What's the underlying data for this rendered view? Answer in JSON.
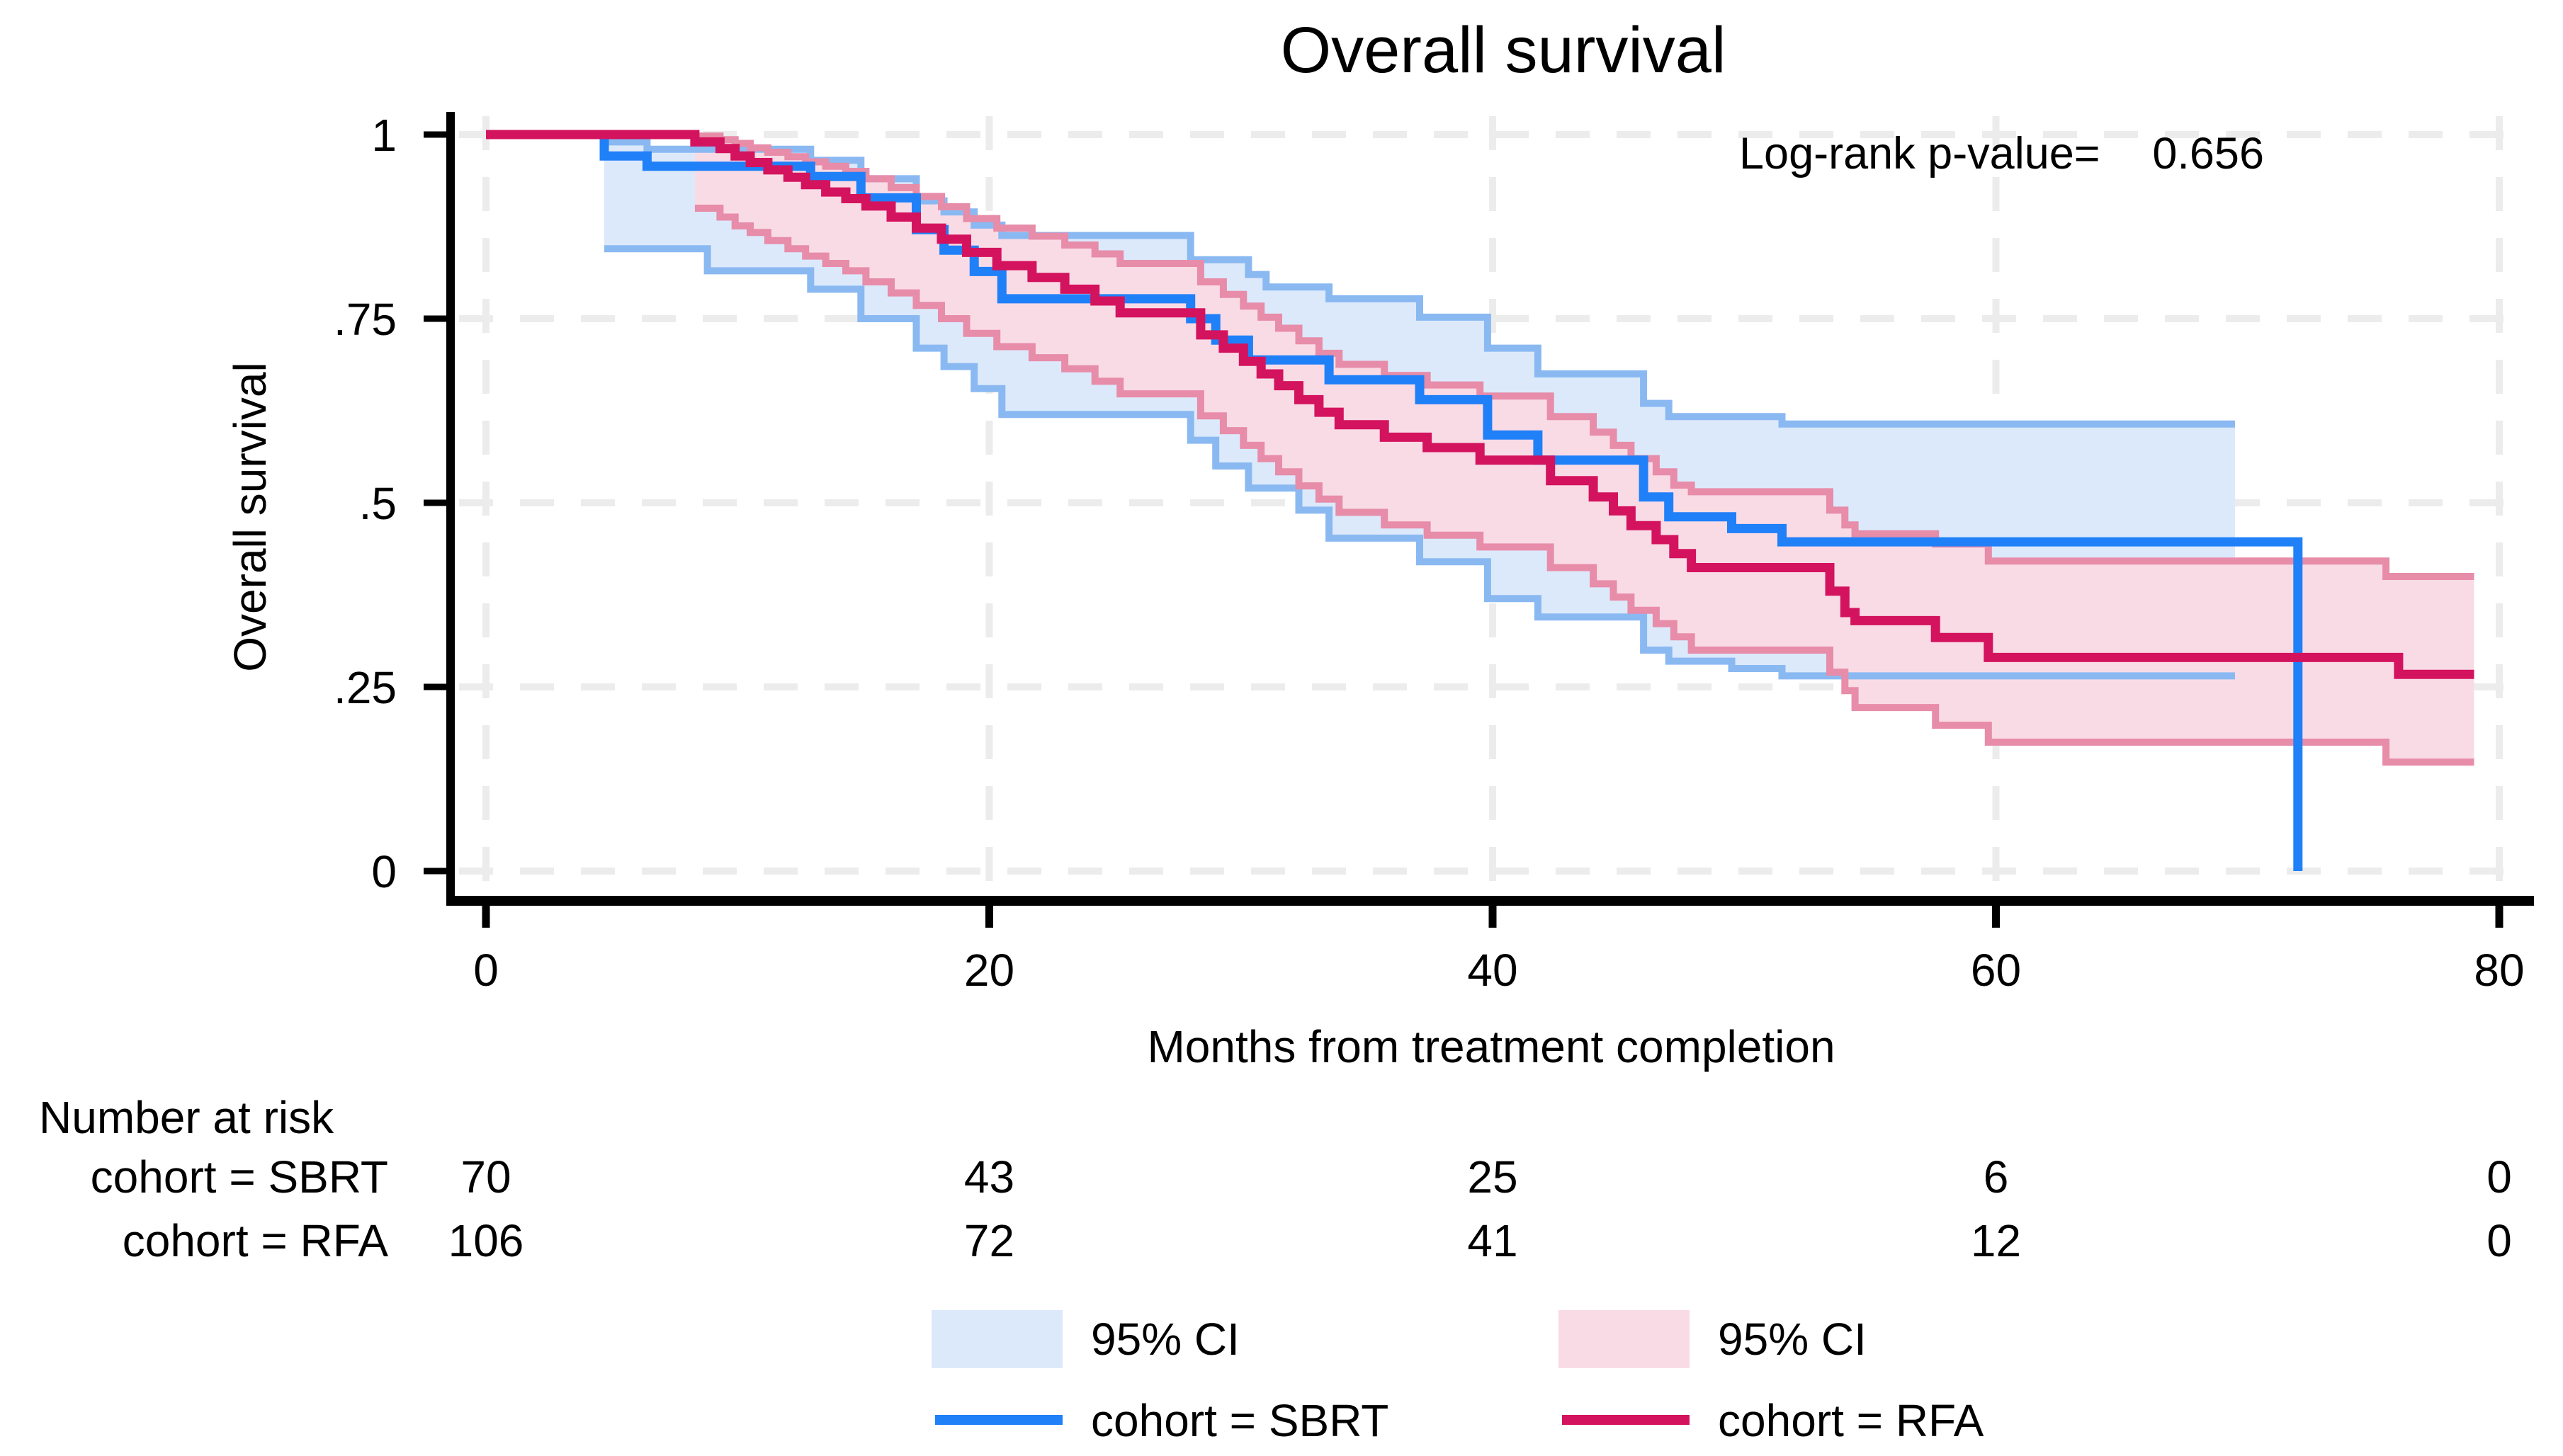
{
  "chart": {
    "title": "Overall survival",
    "pvalue_label": "Log-rank p-value=",
    "pvalue_value": "0.656",
    "y_title": "Overall survival",
    "x_title": "Months from treatment completion"
  },
  "risk_table": {
    "heading": "Number at risk",
    "rows": [
      {
        "label": "cohort = SBRT",
        "counts": [
          "70",
          "43",
          "25",
          "6",
          "0"
        ]
      },
      {
        "label": "cohort = RFA",
        "counts": [
          "106",
          "72",
          "41",
          "12",
          "0"
        ]
      }
    ]
  },
  "legend": {
    "ci_sbrt_label": "95% CI",
    "ci_rfa_label": "95% CI",
    "sbrt_label": "cohort = SBRT",
    "rfa_label": "cohort = RFA"
  },
  "colors": {
    "sbrt_line": "#2080f8",
    "rfa_line": "#d4135e",
    "sbrt_ci_fill": "#dce9fb",
    "sbrt_ci_edge": "#8ab9f2",
    "rfa_ci_fill": "#f9dbe6",
    "rfa_ci_edge": "#e78ca9",
    "grid": "#ececec",
    "axis": "#000000"
  },
  "chart_data": {
    "type": "line",
    "subtype": "kaplan-meier-step",
    "title": "Overall survival",
    "xlabel": "Months from treatment completion",
    "ylabel": "Overall survival",
    "xlim": [
      0,
      80
    ],
    "ylim": [
      0,
      1
    ],
    "grid": true,
    "legend_position": "bottom",
    "annotation": "Log-rank p-value= 0.656",
    "x_axis": {
      "ticks": [
        0,
        20,
        40,
        60,
        80
      ]
    },
    "y_axis": {
      "ticks": [
        {
          "v": 1,
          "label": "1"
        },
        {
          "v": 0.75,
          "label": ".75"
        },
        {
          "v": 0.5,
          "label": ".5"
        },
        {
          "v": 0.25,
          "label": ".25"
        },
        {
          "v": 0,
          "label": "0"
        }
      ]
    },
    "series": [
      {
        "name": "cohort = SBRT",
        "n_at_risk": [
          70,
          43,
          25,
          6,
          0
        ],
        "steps": [
          [
            0,
            1
          ],
          [
            4.7,
            0.971
          ],
          [
            6.4,
            0.957
          ],
          [
            12.9,
            0.943
          ],
          [
            14.9,
            0.914
          ],
          [
            17.1,
            0.871
          ],
          [
            18.2,
            0.843
          ],
          [
            19.4,
            0.814
          ],
          [
            20.5,
            0.777
          ],
          [
            28,
            0.75
          ],
          [
            29,
            0.721
          ],
          [
            30.3,
            0.694
          ],
          [
            33.5,
            0.667
          ],
          [
            37.1,
            0.64
          ],
          [
            39.8,
            0.592
          ],
          [
            41.8,
            0.558
          ],
          [
            46,
            0.508
          ],
          [
            47,
            0.481
          ],
          [
            49.5,
            0.465
          ],
          [
            51.5,
            0.447
          ],
          [
            72,
            0.447
          ],
          [
            72,
            0
          ]
        ],
        "end_t": null,
        "ci_upper": [
          [
            4.7,
            0.99
          ],
          [
            6.4,
            0.98
          ],
          [
            12.9,
            0.965
          ],
          [
            14.9,
            0.94
          ],
          [
            17.1,
            0.91
          ],
          [
            18.2,
            0.895
          ],
          [
            19.4,
            0.877
          ],
          [
            20.5,
            0.863
          ],
          [
            28,
            0.83
          ],
          [
            30.3,
            0.81
          ],
          [
            31,
            0.793
          ],
          [
            33.5,
            0.777
          ],
          [
            37.1,
            0.752
          ],
          [
            39.8,
            0.71
          ],
          [
            41.8,
            0.675
          ],
          [
            46,
            0.635
          ],
          [
            47,
            0.617
          ],
          [
            51.5,
            0.607
          ]
        ],
        "ci_lower": [
          [
            4.7,
            0.845
          ],
          [
            8.8,
            0.815
          ],
          [
            12.9,
            0.79
          ],
          [
            14.9,
            0.75
          ],
          [
            17.1,
            0.71
          ],
          [
            18.2,
            0.685
          ],
          [
            19.4,
            0.655
          ],
          [
            20.5,
            0.62
          ],
          [
            28,
            0.585
          ],
          [
            29,
            0.55
          ],
          [
            30.3,
            0.52
          ],
          [
            32.3,
            0.49
          ],
          [
            33.5,
            0.452
          ],
          [
            37.1,
            0.42
          ],
          [
            39.8,
            0.37
          ],
          [
            41.8,
            0.345
          ],
          [
            46,
            0.3
          ],
          [
            47,
            0.285
          ],
          [
            49.5,
            0.275
          ],
          [
            51.5,
            0.265
          ]
        ],
        "ci_end_t": 69.5
      },
      {
        "name": "cohort = RFA",
        "n_at_risk": [
          106,
          72,
          41,
          12,
          0
        ],
        "steps": [
          [
            0,
            1
          ],
          [
            8.3,
            0.99
          ],
          [
            9.3,
            0.981
          ],
          [
            9.9,
            0.971
          ],
          [
            10.5,
            0.962
          ],
          [
            11.2,
            0.952
          ],
          [
            12,
            0.942
          ],
          [
            12.7,
            0.932
          ],
          [
            13.5,
            0.922
          ],
          [
            14.3,
            0.913
          ],
          [
            15.1,
            0.903
          ],
          [
            16.1,
            0.888
          ],
          [
            17.1,
            0.873
          ],
          [
            18.1,
            0.858
          ],
          [
            19.1,
            0.84
          ],
          [
            20.3,
            0.822
          ],
          [
            21.7,
            0.806
          ],
          [
            23,
            0.79
          ],
          [
            24.2,
            0.774
          ],
          [
            25.2,
            0.758
          ],
          [
            28.4,
            0.728
          ],
          [
            29.3,
            0.71
          ],
          [
            30.1,
            0.692
          ],
          [
            30.8,
            0.675
          ],
          [
            31.5,
            0.659
          ],
          [
            32.3,
            0.64
          ],
          [
            33.1,
            0.623
          ],
          [
            33.9,
            0.606
          ],
          [
            35.7,
            0.589
          ],
          [
            37.4,
            0.575
          ],
          [
            39.5,
            0.558
          ],
          [
            42.3,
            0.53
          ],
          [
            44,
            0.508
          ],
          [
            44.8,
            0.489
          ],
          [
            45.5,
            0.469
          ],
          [
            46.5,
            0.45
          ],
          [
            47.2,
            0.431
          ],
          [
            47.9,
            0.412
          ],
          [
            53.4,
            0.38
          ],
          [
            54,
            0.351
          ],
          [
            54.4,
            0.34
          ],
          [
            57.6,
            0.317
          ],
          [
            59.7,
            0.29
          ],
          [
            76,
            0.267
          ]
        ],
        "end_t": 79,
        "ci_upper": [
          [
            8.3,
            0.998
          ],
          [
            9.3,
            0.993
          ],
          [
            9.9,
            0.988
          ],
          [
            10.5,
            0.982
          ],
          [
            11.2,
            0.976
          ],
          [
            12,
            0.97
          ],
          [
            12.7,
            0.963
          ],
          [
            13.5,
            0.957
          ],
          [
            14.3,
            0.95
          ],
          [
            15.1,
            0.94
          ],
          [
            16.1,
            0.928
          ],
          [
            17.1,
            0.916
          ],
          [
            18.1,
            0.902
          ],
          [
            19.1,
            0.886
          ],
          [
            20.3,
            0.873
          ],
          [
            21.7,
            0.862
          ],
          [
            23,
            0.85
          ],
          [
            24.2,
            0.838
          ],
          [
            25.2,
            0.825
          ],
          [
            28.4,
            0.8
          ],
          [
            29.3,
            0.783
          ],
          [
            30.1,
            0.767
          ],
          [
            30.8,
            0.752
          ],
          [
            31.5,
            0.737
          ],
          [
            32.3,
            0.72
          ],
          [
            33.1,
            0.703
          ],
          [
            33.9,
            0.688
          ],
          [
            35.7,
            0.673
          ],
          [
            37.4,
            0.66
          ],
          [
            39.5,
            0.645
          ],
          [
            42.3,
            0.617
          ],
          [
            44,
            0.596
          ],
          [
            44.8,
            0.578
          ],
          [
            45.5,
            0.56
          ],
          [
            46.5,
            0.542
          ],
          [
            47.2,
            0.524
          ],
          [
            47.9,
            0.515
          ],
          [
            53.4,
            0.49
          ],
          [
            54,
            0.47
          ],
          [
            54.4,
            0.458
          ],
          [
            57.6,
            0.444
          ],
          [
            59.7,
            0.421
          ],
          [
            75.5,
            0.4
          ]
        ],
        "ci_lower": [
          [
            8.3,
            0.9
          ],
          [
            9.3,
            0.888
          ],
          [
            9.9,
            0.876
          ],
          [
            10.5,
            0.867
          ],
          [
            11.2,
            0.856
          ],
          [
            12,
            0.845
          ],
          [
            12.7,
            0.835
          ],
          [
            13.5,
            0.825
          ],
          [
            14.3,
            0.815
          ],
          [
            15.1,
            0.8
          ],
          [
            16.1,
            0.785
          ],
          [
            17.1,
            0.768
          ],
          [
            18.1,
            0.75
          ],
          [
            19.1,
            0.73
          ],
          [
            20.3,
            0.712
          ],
          [
            21.7,
            0.697
          ],
          [
            23,
            0.682
          ],
          [
            24.2,
            0.665
          ],
          [
            25.2,
            0.648
          ],
          [
            28.4,
            0.618
          ],
          [
            29.3,
            0.598
          ],
          [
            30.1,
            0.578
          ],
          [
            30.8,
            0.56
          ],
          [
            31.5,
            0.542
          ],
          [
            32.3,
            0.523
          ],
          [
            33.1,
            0.505
          ],
          [
            33.9,
            0.487
          ],
          [
            35.7,
            0.47
          ],
          [
            37.4,
            0.456
          ],
          [
            39.5,
            0.44
          ],
          [
            42.3,
            0.412
          ],
          [
            44,
            0.39
          ],
          [
            44.8,
            0.372
          ],
          [
            45.5,
            0.354
          ],
          [
            46.5,
            0.336
          ],
          [
            47.2,
            0.318
          ],
          [
            47.9,
            0.3
          ],
          [
            53.4,
            0.27
          ],
          [
            54,
            0.245
          ],
          [
            54.4,
            0.222
          ],
          [
            57.6,
            0.198
          ],
          [
            59.7,
            0.175
          ],
          [
            75.5,
            0.148
          ]
        ],
        "ci_end_t": 79
      }
    ]
  }
}
